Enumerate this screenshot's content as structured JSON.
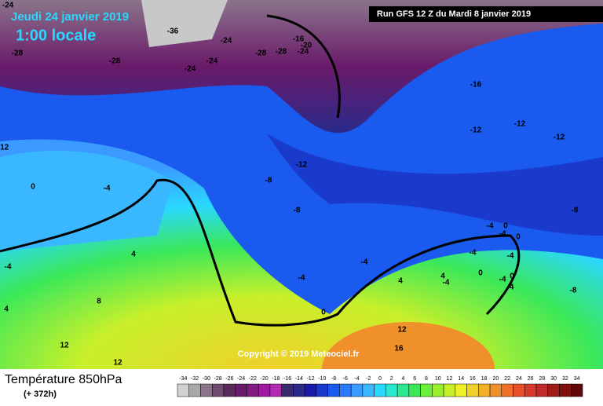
{
  "header": {
    "date": "Jeudi 24 janvier 2019",
    "time": "1:00 locale",
    "run": "Run GFS 12 Z du Mardi 8 janvier 2019"
  },
  "footer": {
    "title": "Température 850hPa",
    "lead": "(+ 372h)",
    "copyright": "Copyright © 2019 Meteociel.fr"
  },
  "contour_labels": [
    -24,
    -36,
    -24,
    -28,
    -28,
    -24,
    -24,
    -28,
    -28,
    -16,
    -20,
    -24,
    -16,
    -12,
    -12,
    -12,
    -12,
    -12,
    0,
    -4,
    -8,
    -8,
    -8,
    -4,
    0,
    -4,
    0,
    -4,
    -4,
    4,
    -4,
    -4,
    4,
    -4,
    4,
    -4,
    0,
    -4,
    0,
    -4,
    -8,
    8,
    4,
    0,
    12,
    16,
    12,
    12
  ],
  "legend": {
    "ticks": [
      -34,
      -32,
      -30,
      -28,
      -26,
      -24,
      -22,
      -20,
      -18,
      -16,
      -14,
      -12,
      -10,
      -8,
      -6,
      -4,
      -2,
      0,
      2,
      4,
      6,
      8,
      10,
      12,
      14,
      16,
      18,
      20,
      22,
      24,
      26,
      28,
      30,
      32,
      34
    ],
    "colors": [
      "#d0d0d0",
      "#a8a8a8",
      "#8a748a",
      "#6e4a6e",
      "#5a2a5a",
      "#6a1a6a",
      "#821a82",
      "#a01aa0",
      "#b42ab4",
      "#3a2a6e",
      "#2a2a8a",
      "#1a1aaa",
      "#1a3acc",
      "#1a5aee",
      "#2a7aff",
      "#3a9aff",
      "#3ab8ff",
      "#2ad8ff",
      "#2ae8d0",
      "#2ae890",
      "#3ae85a",
      "#6af03a",
      "#9af02a",
      "#c8f02a",
      "#f0f02a",
      "#f0d02a",
      "#f0b02a",
      "#f0902a",
      "#f0702a",
      "#e8502a",
      "#d83a2a",
      "#c02a2a",
      "#a01a1a",
      "#801010",
      "#600808"
    ]
  }
}
